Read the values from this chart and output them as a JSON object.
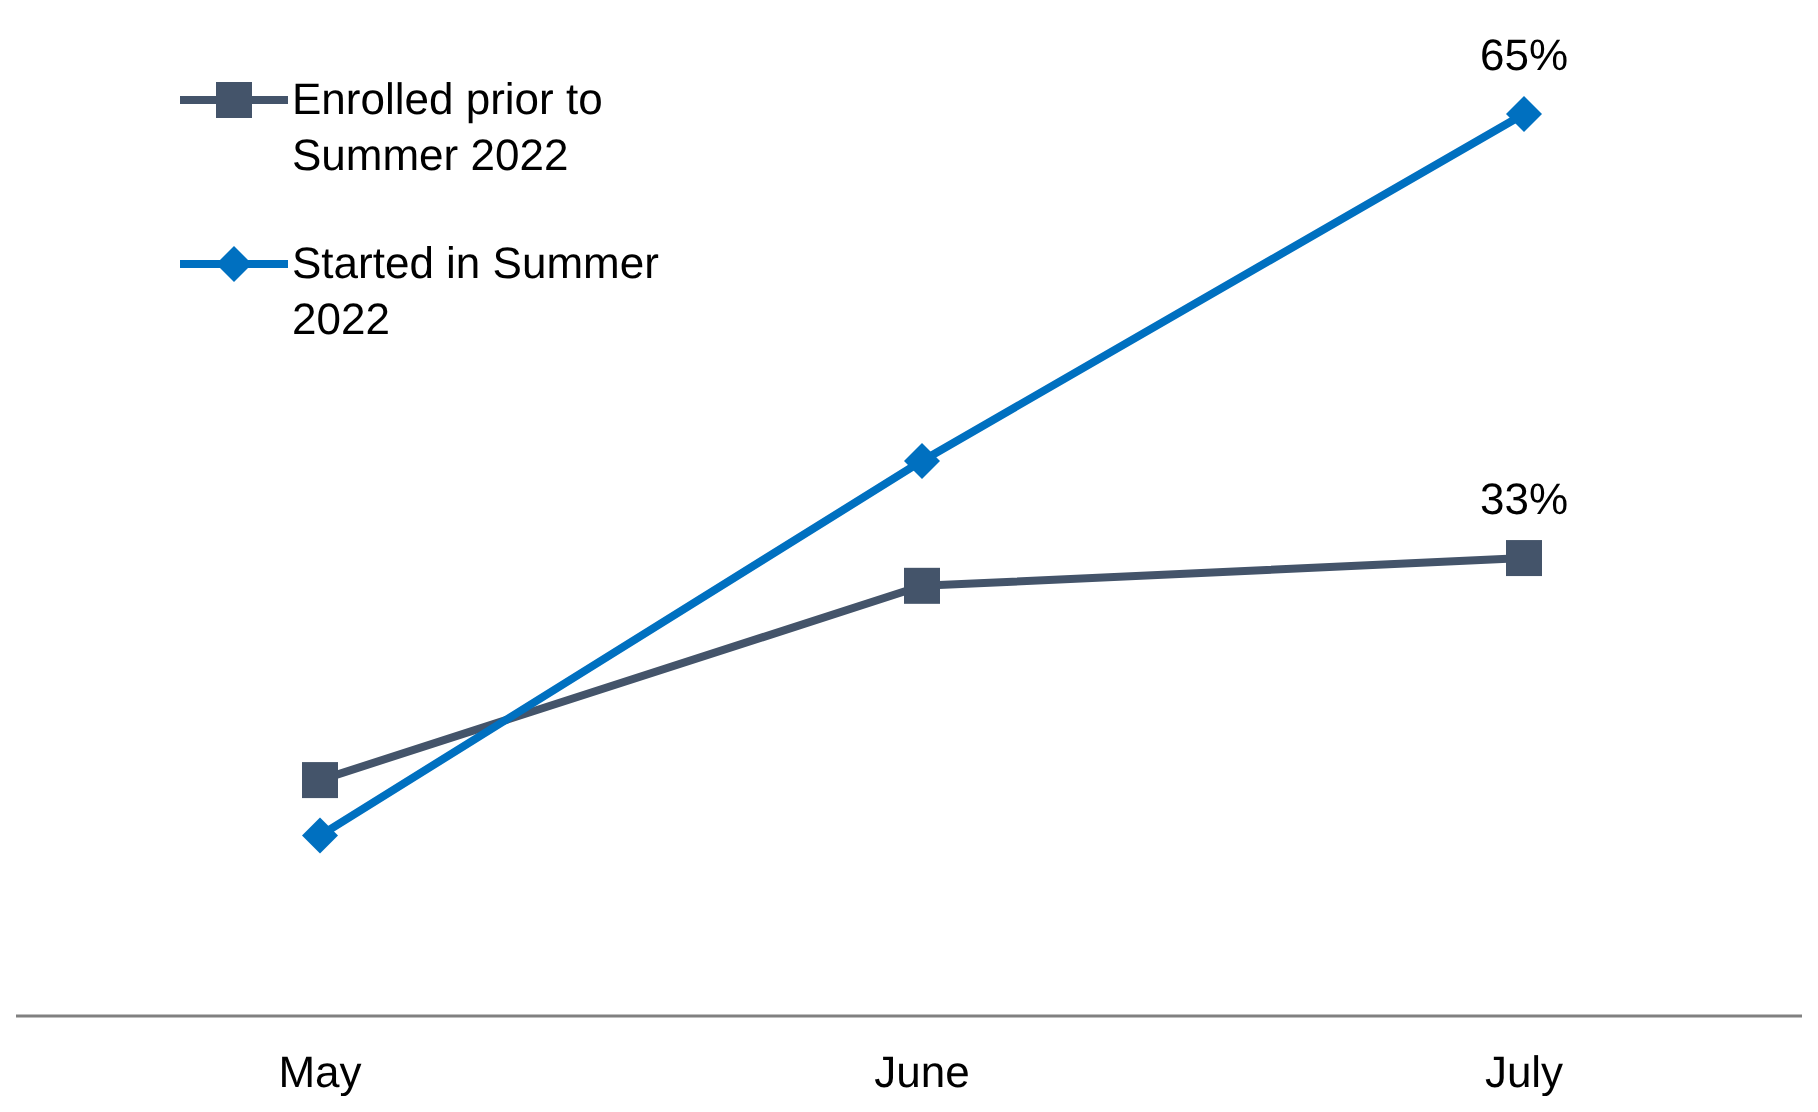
{
  "chart_data": {
    "type": "line",
    "categories": [
      "May",
      "June",
      "July"
    ],
    "legend": "top left",
    "series": [
      {
        "name": "Enrolled prior to Summer 2022",
        "color": "#44546a",
        "marker": "square",
        "values": [
          17,
          31,
          33
        ],
        "value_labels": [
          null,
          null,
          "33%"
        ]
      },
      {
        "name": "Started in Summer 2022",
        "color": "#0070c0",
        "marker": "diamond",
        "values": [
          13,
          40,
          65
        ],
        "value_labels": [
          null,
          null,
          "65%"
        ]
      }
    ]
  }
}
